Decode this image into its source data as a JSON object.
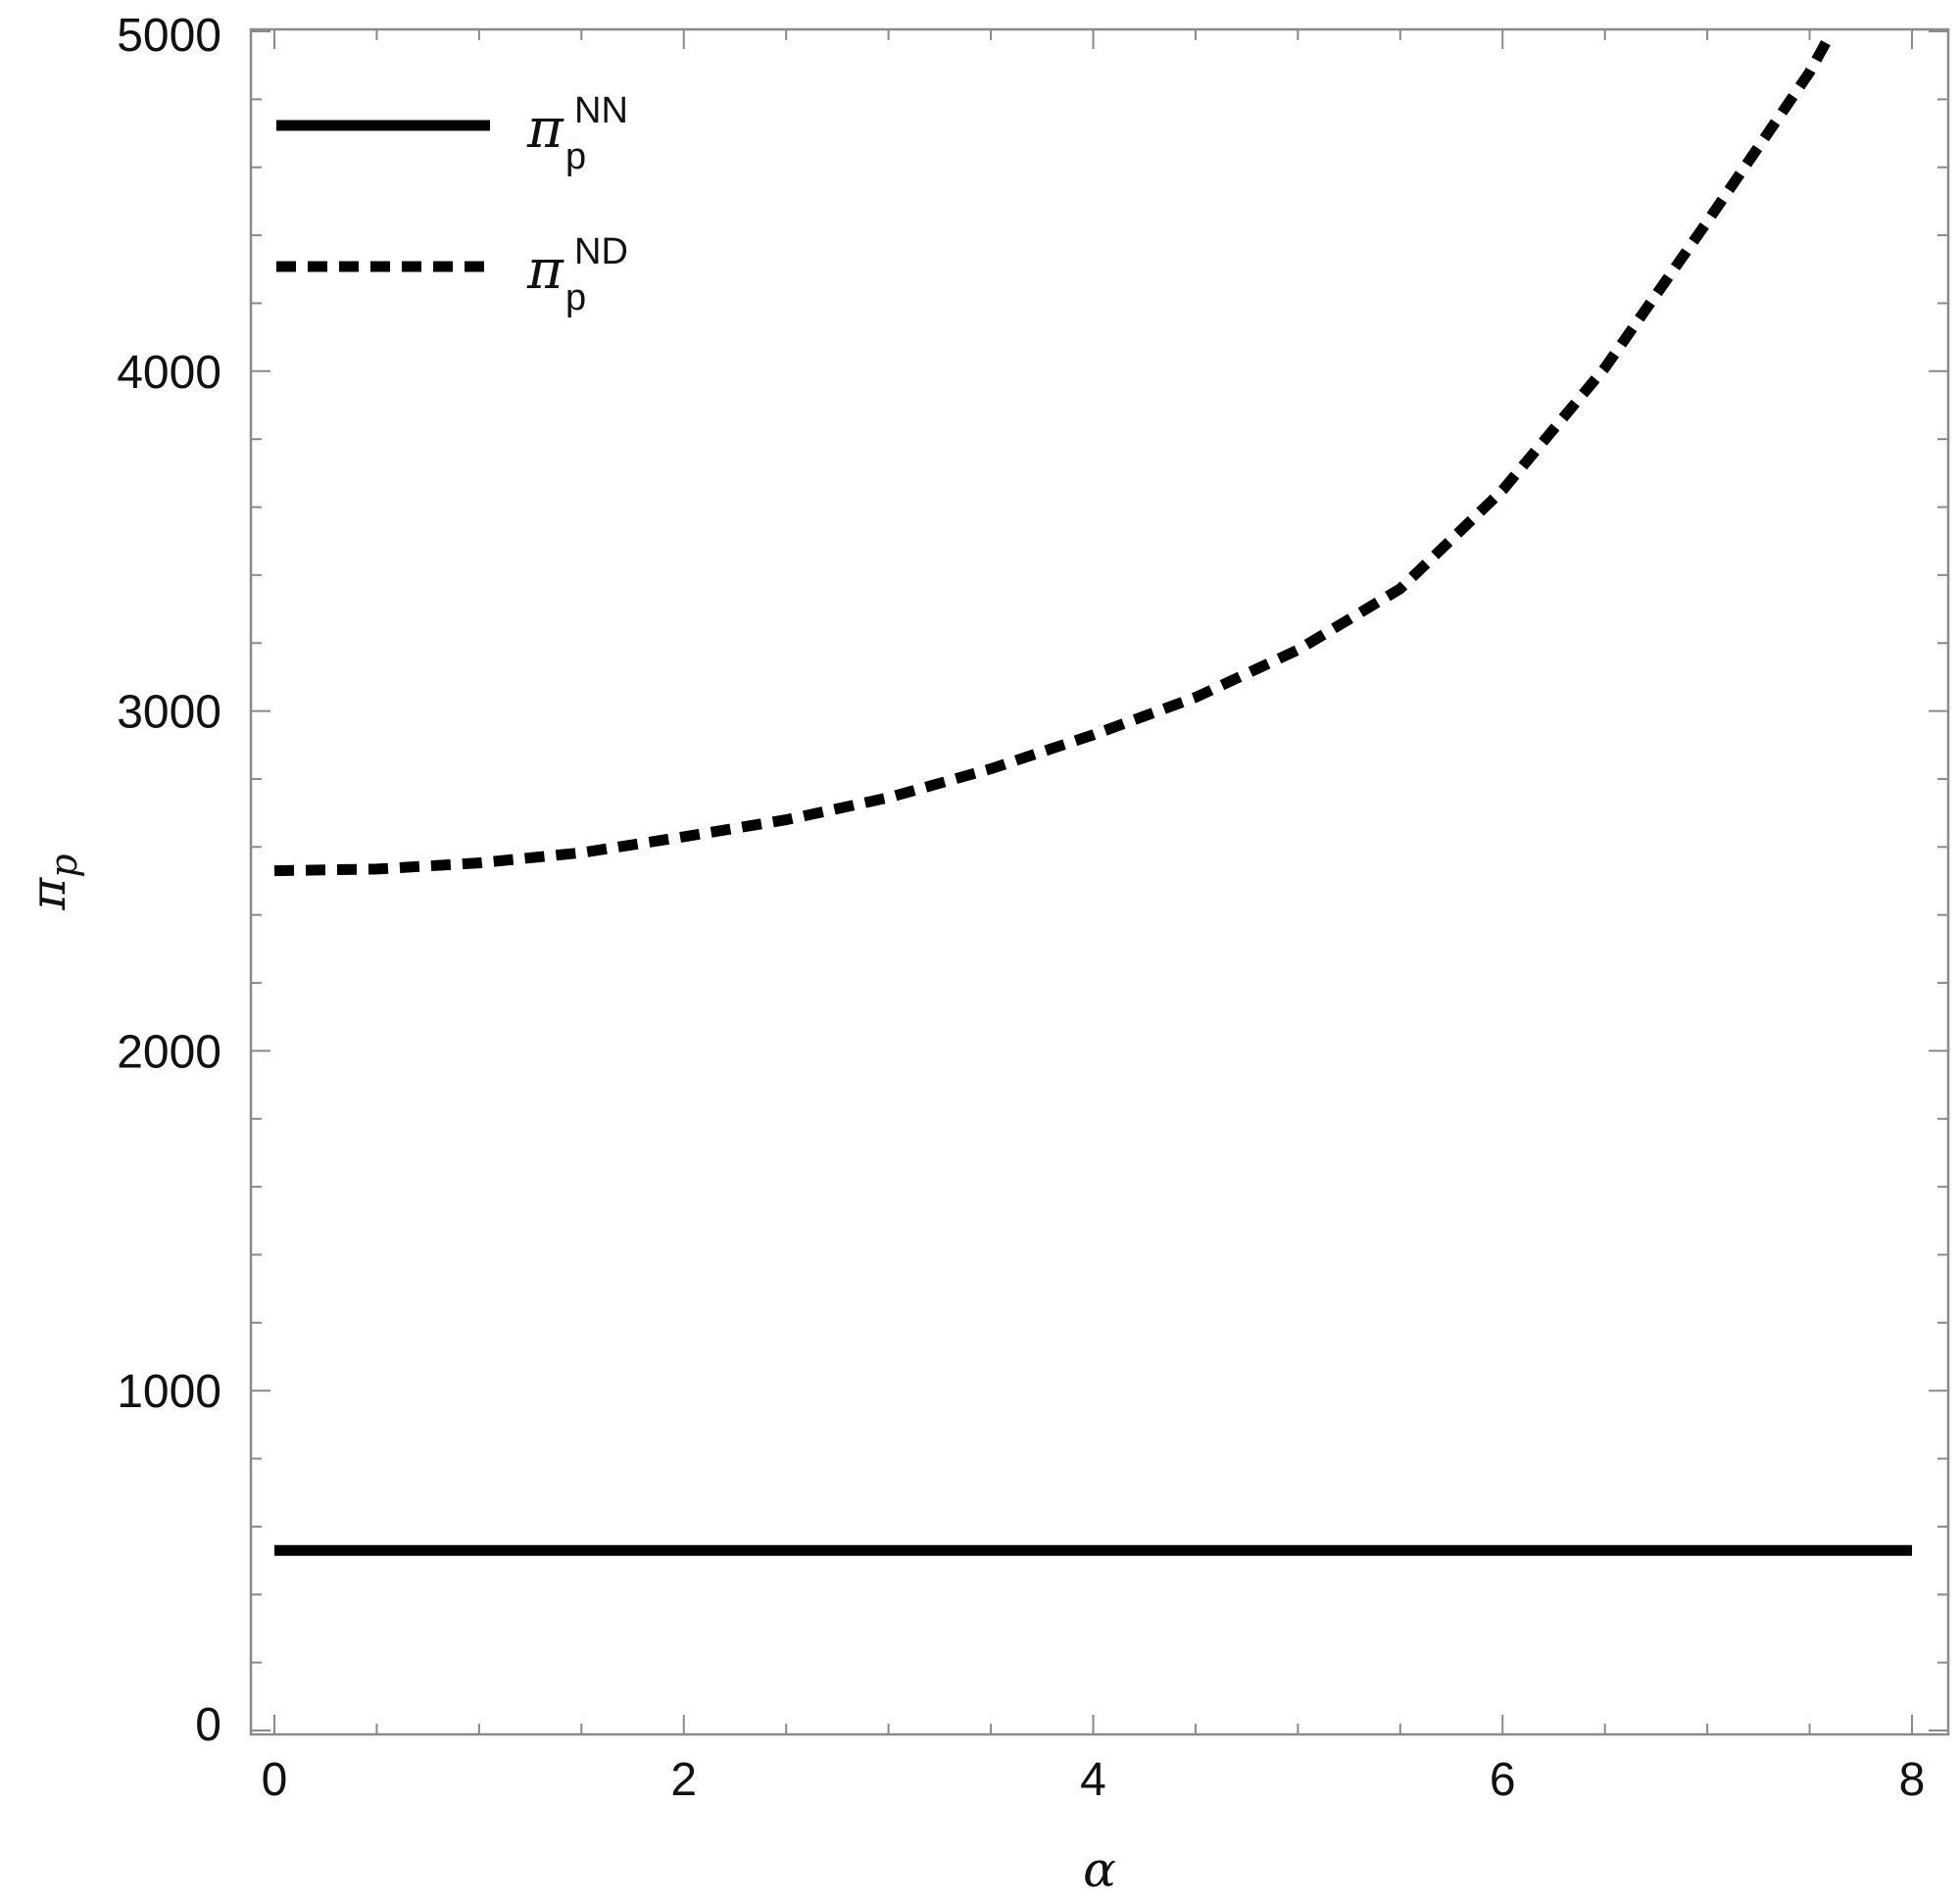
{
  "chart_data": {
    "type": "line",
    "title": "",
    "xlabel": "α",
    "ylabel": "π",
    "ylabel_sub": "p",
    "xlim": [
      0,
      8
    ],
    "ylim": [
      0,
      5000
    ],
    "x_ticks": [
      0,
      2,
      4,
      6,
      8
    ],
    "x_tick_labels": [
      "0",
      "2",
      "4",
      "6",
      "8"
    ],
    "y_ticks": [
      0,
      1000,
      2000,
      3000,
      4000,
      5000
    ],
    "y_tick_labels": [
      "0",
      "1000",
      "2000",
      "3000",
      "4000",
      "5000"
    ],
    "grid": false,
    "legend": {
      "position": "top-left",
      "entries": [
        {
          "symbol": "π",
          "sub": "p",
          "sup": "NN",
          "style": "solid"
        },
        {
          "symbol": "π",
          "sub": "p",
          "sup": "ND",
          "style": "dashed"
        }
      ]
    },
    "series": [
      {
        "style": "solid",
        "color": "#000000",
        "x": [
          0,
          8
        ],
        "y": [
          530,
          530
        ]
      },
      {
        "style": "dashed",
        "color": "#000000",
        "x": [
          0,
          0.5,
          1,
          1.5,
          2,
          2.5,
          3,
          3.5,
          4,
          4.5,
          5,
          5.5,
          6,
          6.5,
          7,
          7.5,
          7.6
        ],
        "y": [
          2530,
          2535,
          2553,
          2583,
          2630,
          2680,
          2745,
          2830,
          2930,
          3040,
          3180,
          3360,
          3650,
          4010,
          4440,
          4880,
          4990
        ]
      }
    ]
  }
}
